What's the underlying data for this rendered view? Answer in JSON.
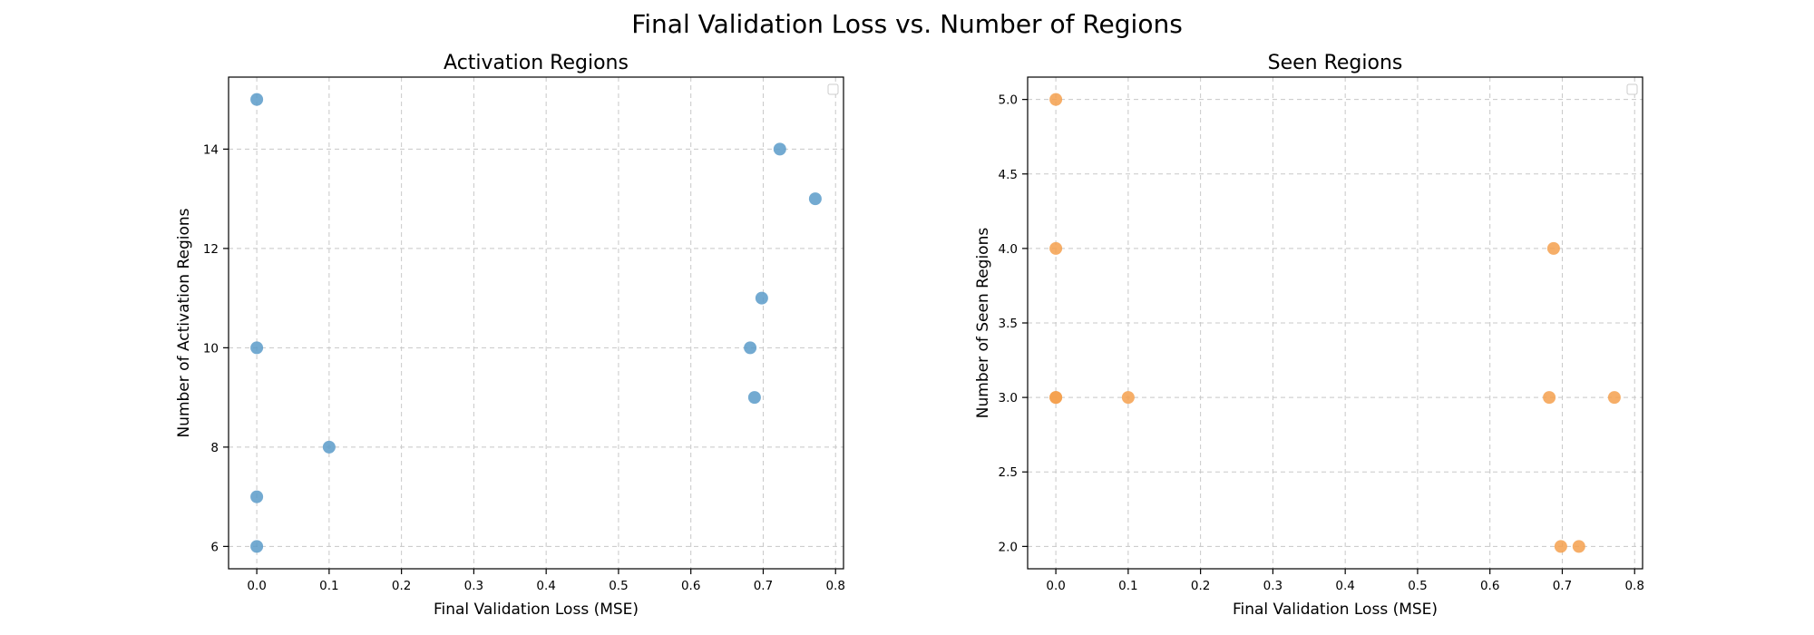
{
  "figure": {
    "title": "Final Validation Loss vs. Number of Regions"
  },
  "chart_data": [
    {
      "type": "scatter",
      "title": "Activation Regions",
      "xlabel": "Final Validation Loss (MSE)",
      "ylabel": "Number of Activation Regions",
      "xlim": [
        -0.039,
        0.811
      ],
      "ylim": [
        5.55,
        15.45
      ],
      "xticks": [
        "0.0",
        "0.1",
        "0.2",
        "0.3",
        "0.4",
        "0.5",
        "0.6",
        "0.7",
        "0.8"
      ],
      "xtick_values": [
        0.0,
        0.1,
        0.2,
        0.3,
        0.4,
        0.5,
        0.6,
        0.7,
        0.8
      ],
      "yticks": [
        "6",
        "8",
        "10",
        "12",
        "14"
      ],
      "ytick_values": [
        6,
        8,
        10,
        12,
        14
      ],
      "grid": true,
      "legend": "top-right (empty)",
      "color": "#5b9bc9",
      "points": [
        {
          "x": 0.0,
          "y": 15
        },
        {
          "x": 0.0,
          "y": 10
        },
        {
          "x": 0.0,
          "y": 7
        },
        {
          "x": 0.0,
          "y": 6
        },
        {
          "x": 0.1,
          "y": 8
        },
        {
          "x": 0.682,
          "y": 10
        },
        {
          "x": 0.688,
          "y": 9
        },
        {
          "x": 0.698,
          "y": 11
        },
        {
          "x": 0.723,
          "y": 14
        },
        {
          "x": 0.772,
          "y": 13
        }
      ]
    },
    {
      "type": "scatter",
      "title": "Seen Regions",
      "xlabel": "Final Validation Loss (MSE)",
      "ylabel": "Number of Seen Regions",
      "xlim": [
        -0.039,
        0.811
      ],
      "ylim": [
        1.85,
        5.15
      ],
      "xticks": [
        "0.0",
        "0.1",
        "0.2",
        "0.3",
        "0.4",
        "0.5",
        "0.6",
        "0.7",
        "0.8"
      ],
      "xtick_values": [
        0.0,
        0.1,
        0.2,
        0.3,
        0.4,
        0.5,
        0.6,
        0.7,
        0.8
      ],
      "yticks": [
        "2.0",
        "2.5",
        "3.0",
        "3.5",
        "4.0",
        "4.5",
        "5.0"
      ],
      "ytick_values": [
        2.0,
        2.5,
        3.0,
        3.5,
        4.0,
        4.5,
        5.0
      ],
      "grid": true,
      "legend": "top-right (empty)",
      "color": "#f5a04e",
      "points": [
        {
          "x": 0.0,
          "y": 5
        },
        {
          "x": 0.0,
          "y": 4
        },
        {
          "x": 0.0,
          "y": 3
        },
        {
          "x": 0.0,
          "y": 3
        },
        {
          "x": 0.1,
          "y": 3
        },
        {
          "x": 0.682,
          "y": 3
        },
        {
          "x": 0.688,
          "y": 4
        },
        {
          "x": 0.698,
          "y": 2
        },
        {
          "x": 0.723,
          "y": 2
        },
        {
          "x": 0.772,
          "y": 3
        }
      ]
    }
  ]
}
